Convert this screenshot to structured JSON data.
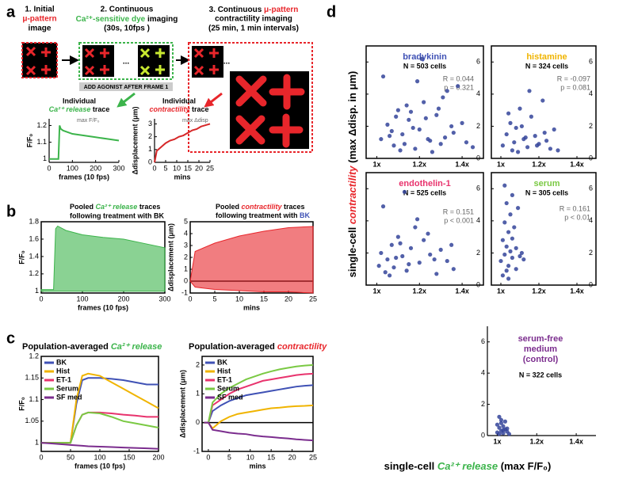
{
  "labels": {
    "a": "a",
    "b": "b",
    "c": "c",
    "d": "d"
  },
  "schematic": {
    "step1": [
      "1. Initial",
      "μ-pattern",
      "image"
    ],
    "step2": [
      "2. Continuous",
      "Ca²⁺-sensitive dye",
      " imaging",
      "(30s, 10fps )"
    ],
    "step3": [
      "3. Continuous ",
      "μ-pattern",
      "contractility imaging",
      "(25 min, 1 min intervals)"
    ],
    "agonist": "ADD AGONIST AFTER FRAME 1",
    "ellipsis": "..."
  },
  "panel_d": {
    "y_label": [
      "single-cell ",
      "contractility",
      " (max Δdisp. in μm)"
    ],
    "x_label": [
      "single-cell ",
      "Ca²⁺ release",
      " (max F/F₀)"
    ]
  },
  "chart_data": [
    {
      "type": "line",
      "title": [
        "Individual",
        "Ca²⁺ release",
        " trace"
      ],
      "annotation": "max F/F₀",
      "x_label": "frames (10 fps)",
      "y_label": "F/F₀",
      "x": [
        0,
        20,
        30,
        40,
        45,
        50,
        60,
        80,
        100,
        150,
        200,
        250,
        300
      ],
      "values": [
        1,
        1,
        1,
        1,
        1.2,
        1.18,
        1.17,
        1.16,
        1.15,
        1.14,
        1.13,
        1.12,
        1.11
      ],
      "color": "#3cb44b",
      "xlim": [
        0,
        300
      ],
      "xticks": [
        0,
        100,
        200,
        300
      ],
      "ylim": [
        0.98,
        1.24
      ],
      "yticks": [
        1,
        1.1,
        1.2
      ]
    },
    {
      "type": "line",
      "title": [
        "Individual",
        "contractility",
        " trace"
      ],
      "annotation": "max Δdisp",
      "x_label": "mins",
      "y_label": "Δdisplacement (μm)",
      "x": [
        0,
        1,
        3,
        5,
        7,
        9,
        11,
        13,
        15,
        17,
        19,
        21,
        23,
        25
      ],
      "values": [
        0,
        0.9,
        1.2,
        1.5,
        1.7,
        1.8,
        2.0,
        2.1,
        2.3,
        2.5,
        2.6,
        2.8,
        2.9,
        3.0
      ],
      "color": "#d62728",
      "xlim": [
        0,
        25
      ],
      "xticks": [
        0,
        5,
        10,
        15,
        20,
        25
      ],
      "ylim": [
        0,
        3.4
      ],
      "yticks": [
        0,
        1,
        2,
        3
      ]
    },
    {
      "type": "band",
      "title": [
        "Pooled ",
        "Ca²⁺ release",
        " traces",
        "following treatment with BK"
      ],
      "x_label": "frames (10 fps)",
      "y_label": "F/F₀",
      "x": [
        0,
        30,
        35,
        40,
        60,
        100,
        150,
        200,
        250,
        300
      ],
      "lower": [
        1,
        1,
        1,
        1,
        1,
        1,
        1,
        1,
        1,
        1
      ],
      "upper": [
        1.02,
        1.02,
        1.72,
        1.75,
        1.7,
        1.65,
        1.62,
        1.6,
        1.55,
        1.5
      ],
      "color": "#3cb44b",
      "xlim": [
        0,
        300
      ],
      "xticks": [
        0,
        100,
        200,
        300
      ],
      "ylim": [
        0.98,
        1.8
      ],
      "yticks": [
        1,
        1.2,
        1.4,
        1.6,
        1.8
      ]
    },
    {
      "type": "band",
      "title": [
        "Pooled ",
        "contractility",
        " traces",
        "following treatment with ",
        "BK"
      ],
      "x_label": "mins",
      "y_label": "Δdisplacement (μm)",
      "x": [
        0,
        1,
        5,
        10,
        15,
        20,
        25
      ],
      "lower": [
        0,
        -0.5,
        -0.7,
        -0.8,
        -0.9,
        -0.9,
        -1
      ],
      "upper": [
        0,
        2.5,
        3.2,
        3.8,
        4.2,
        4.5,
        4.6
      ],
      "color": "#e8262b",
      "xlim": [
        0,
        25
      ],
      "xticks": [
        0,
        5,
        10,
        15,
        20,
        25
      ],
      "ylim": [
        -1,
        5
      ],
      "yticks": [
        -1,
        0,
        1,
        2,
        3,
        4,
        5
      ]
    },
    {
      "type": "line",
      "title": [
        "Population-averaged ",
        "Ca²⁺ release"
      ],
      "x_label": "frames (10 fps)",
      "y_label": "F/F₀",
      "legend": "upper left",
      "x": [
        0,
        20,
        40,
        50,
        60,
        70,
        80,
        100,
        120,
        140,
        160,
        180,
        200
      ],
      "series": [
        {
          "name": "BK",
          "color": "#3f51b5",
          "values": [
            1,
            1,
            1,
            1,
            1.09,
            1.145,
            1.15,
            1.15,
            1.148,
            1.145,
            1.14,
            1.135,
            1.135
          ]
        },
        {
          "name": "Hist",
          "color": "#f0b400",
          "values": [
            1,
            1,
            1,
            1,
            1.1,
            1.155,
            1.16,
            1.155,
            1.14,
            1.125,
            1.11,
            1.095,
            1.08
          ]
        },
        {
          "name": "ET-1",
          "color": "#e8336d",
          "values": [
            1,
            1,
            1,
            1,
            1.04,
            1.065,
            1.07,
            1.07,
            1.068,
            1.065,
            1.063,
            1.06,
            1.06
          ]
        },
        {
          "name": "Serum",
          "color": "#7ac943",
          "values": [
            1,
            1,
            1,
            1,
            1.04,
            1.065,
            1.07,
            1.068,
            1.06,
            1.05,
            1.045,
            1.04,
            1.035
          ]
        },
        {
          "name": "SF med",
          "color": "#7b2d8e",
          "values": [
            1,
            0.998,
            0.996,
            0.995,
            0.994,
            0.993,
            0.992,
            0.991,
            0.99,
            0.989,
            0.988,
            0.987,
            0.986
          ]
        }
      ],
      "xlim": [
        0,
        200
      ],
      "xticks": [
        0,
        50,
        100,
        150,
        200
      ],
      "ylim": [
        0.98,
        1.2
      ],
      "yticks": [
        1,
        1.05,
        1.1,
        1.15,
        1.2
      ]
    },
    {
      "type": "line",
      "title": [
        "Population-averaged ",
        "contractility"
      ],
      "x_label": "mins",
      "y_label": "Δdisplacement (μm)",
      "legend": "upper left",
      "x": [
        -1,
        0,
        1,
        3,
        5,
        7,
        9,
        11,
        13,
        15,
        17,
        19,
        21,
        23,
        25
      ],
      "series": [
        {
          "name": "BK",
          "color": "#3f51b5",
          "values": [
            0,
            0,
            0.4,
            0.6,
            0.75,
            0.85,
            0.95,
            1.0,
            1.05,
            1.1,
            1.15,
            1.2,
            1.25,
            1.28,
            1.3
          ]
        },
        {
          "name": "Hist",
          "color": "#f0b400",
          "values": [
            0,
            0,
            -0.2,
            0.05,
            0.2,
            0.3,
            0.35,
            0.4,
            0.45,
            0.5,
            0.52,
            0.55,
            0.57,
            0.58,
            0.6
          ]
        },
        {
          "name": "ET-1",
          "color": "#e8336d",
          "values": [
            0,
            0,
            0.6,
            0.8,
            1.0,
            1.15,
            1.25,
            1.35,
            1.45,
            1.5,
            1.55,
            1.6,
            1.65,
            1.68,
            1.7
          ]
        },
        {
          "name": "Serum",
          "color": "#7ac943",
          "values": [
            0,
            0,
            0.7,
            1.0,
            1.2,
            1.35,
            1.5,
            1.6,
            1.7,
            1.78,
            1.85,
            1.9,
            1.95,
            1.98,
            2.0
          ]
        },
        {
          "name": "SF med",
          "color": "#7b2d8e",
          "values": [
            0,
            0,
            -0.25,
            -0.3,
            -0.35,
            -0.38,
            -0.4,
            -0.45,
            -0.48,
            -0.5,
            -0.53,
            -0.55,
            -0.58,
            -0.6,
            -0.62
          ]
        }
      ],
      "xlim": [
        -1.5,
        25
      ],
      "xticks": [
        0,
        5,
        10,
        15,
        20,
        25
      ],
      "ylim": [
        -1,
        2.3
      ],
      "yticks": [
        -1,
        0,
        1,
        2
      ]
    },
    {
      "type": "scatter",
      "title": "bradykinin",
      "n_label": "N = 503 cells",
      "r_label": "R = 0.044",
      "p_label": "p = 0.321",
      "color": "#34449a",
      "x": [
        1.02,
        1.05,
        1.08,
        1.1,
        1.12,
        1.15,
        1.18,
        1.2,
        1.22,
        1.25,
        1.28,
        1.3,
        1.33,
        1.36,
        1.4,
        1.45,
        1.03,
        1.06,
        1.09,
        1.11,
        1.14,
        1.17,
        1.19,
        1.23,
        1.26,
        1.29,
        1.32,
        1.35,
        1.38,
        1.42,
        1.07,
        1.13,
        1.16,
        1.21,
        1.24,
        1.31
      ],
      "values": [
        1.2,
        2.1,
        0.8,
        3.0,
        1.5,
        2.4,
        0.6,
        1.8,
        3.5,
        1.1,
        2.7,
        0.9,
        4.2,
        1.6,
        2.2,
        0.7,
        5.1,
        1.4,
        2.6,
        0.5,
        3.3,
        1.9,
        4.8,
        2.5,
        0.4,
        3.1,
        1.3,
        2.0,
        4.5,
        1.0,
        1.7,
        0.9,
        2.9,
        6.2,
        1.2,
        3.8
      ],
      "xlim": [
        0.95,
        1.5
      ],
      "xticks": [
        {
          "value": 1,
          "label": "1x"
        },
        {
          "value": 1.2,
          "label": "1.2x"
        },
        {
          "value": 1.4,
          "label": "1.4x"
        }
      ],
      "ylim": [
        0,
        7
      ],
      "yticks": [
        0,
        2,
        4,
        6
      ]
    },
    {
      "type": "scatter",
      "title": "histamine",
      "n_label": "N = 324 cells",
      "r_label": "R = -0.097",
      "p_label": "p = 0.081",
      "color": "#34449a",
      "x": [
        1.01,
        1.03,
        1.05,
        1.06,
        1.08,
        1.1,
        1.12,
        1.14,
        1.16,
        1.18,
        1.2,
        1.22,
        1.24,
        1.26,
        1.28,
        1.04,
        1.07,
        1.09,
        1.11,
        1.13,
        1.15,
        1.19,
        1.23,
        1.3
      ],
      "values": [
        0.8,
        1.5,
        2.2,
        0.5,
        1.9,
        3.1,
        1.2,
        0.7,
        2.6,
        1.4,
        0.9,
        3.6,
        1.1,
        0.6,
        1.8,
        2.8,
        1.0,
        0.4,
        2.0,
        1.3,
        4.2,
        0.8,
        1.6,
        0.5
      ],
      "xlim": [
        0.95,
        1.5
      ],
      "xticks": [
        {
          "value": 1,
          "label": "1x"
        },
        {
          "value": 1.2,
          "label": "1.2x"
        },
        {
          "value": 1.4,
          "label": "1.4x"
        }
      ],
      "ylim": [
        0,
        7
      ],
      "yticks": [
        0,
        2,
        4,
        6
      ]
    },
    {
      "type": "scatter",
      "title": "endothelin-1",
      "n_label": "N = 525 cells",
      "r_label": "R = 0.151",
      "p_label": "p < 0.001",
      "color": "#34449a",
      "x": [
        1.01,
        1.02,
        1.04,
        1.05,
        1.07,
        1.08,
        1.1,
        1.12,
        1.14,
        1.16,
        1.18,
        1.2,
        1.22,
        1.25,
        1.28,
        1.3,
        1.33,
        1.36,
        1.03,
        1.06,
        1.09,
        1.11,
        1.13,
        1.15,
        1.19,
        1.24,
        1.27,
        1.35
      ],
      "values": [
        1.2,
        2.0,
        0.8,
        1.6,
        2.5,
        1.1,
        3.0,
        1.8,
        0.9,
        2.3,
        3.6,
        1.4,
        2.8,
        1.9,
        0.7,
        2.2,
        1.5,
        1.0,
        4.9,
        0.6,
        1.7,
        2.6,
        5.8,
        1.3,
        4.1,
        3.2,
        1.6,
        2.5
      ],
      "xlim": [
        0.95,
        1.5
      ],
      "xticks": [
        {
          "value": 1,
          "label": "1x"
        },
        {
          "value": 1.2,
          "label": "1.2x"
        },
        {
          "value": 1.4,
          "label": "1.4x"
        }
      ],
      "ylim": [
        0,
        7
      ],
      "yticks": [
        0,
        2,
        4,
        6
      ]
    },
    {
      "type": "scatter",
      "title": "serum",
      "n_label": "N = 305 cells",
      "r_label": "R = 0.161",
      "p_label": "p < 0.01",
      "color": "#34449a",
      "x": [
        1.0,
        1.01,
        1.01,
        1.02,
        1.02,
        1.03,
        1.03,
        1.04,
        1.04,
        1.05,
        1.05,
        1.06,
        1.06,
        1.07,
        1.08,
        1.08,
        1.09,
        1.1,
        1.11,
        1.12,
        1.02,
        1.04,
        1.06,
        1.03
      ],
      "values": [
        1.5,
        2.8,
        0.6,
        3.9,
        1.9,
        2.4,
        5.1,
        1.2,
        3.3,
        2.1,
        4.4,
        1.7,
        2.9,
        3.6,
        1.0,
        2.3,
        4.8,
        1.8,
        2.0,
        1.6,
        6.2,
        0.4,
        5.6,
        0.9
      ],
      "xlim": [
        0.95,
        1.5
      ],
      "xticks": [
        {
          "value": 1,
          "label": "1x"
        },
        {
          "value": 1.2,
          "label": "1.2x"
        },
        {
          "value": 1.4,
          "label": "1.4x"
        }
      ],
      "ylim": [
        0,
        7
      ],
      "yticks": [
        0,
        2,
        4,
        6
      ]
    },
    {
      "type": "scatter",
      "title": [
        "serum-free",
        "medium",
        "(control)"
      ],
      "n_label": "N = 322 cells",
      "color": "#34449a",
      "x": [
        1.0,
        1.01,
        1.01,
        1.02,
        1.02,
        1.03,
        1.03,
        1.04,
        1.04,
        1.05,
        1.06,
        1.0,
        1.02,
        1.03,
        1.01,
        1.05
      ],
      "values": [
        0.2,
        0.5,
        0.1,
        0.8,
        0.3,
        0.6,
        0.15,
        0.4,
        0.9,
        0.25,
        0.1,
        0.7,
        1.0,
        0.35,
        1.2,
        0.45
      ],
      "xlim": [
        0.95,
        1.5
      ],
      "xticks": [
        {
          "value": 1,
          "label": "1x"
        },
        {
          "value": 1.2,
          "label": "1.2x"
        },
        {
          "value": 1.4,
          "label": "1.4x"
        }
      ],
      "ylim": [
        0,
        7
      ],
      "yticks": [
        0,
        2,
        4,
        6
      ]
    }
  ]
}
